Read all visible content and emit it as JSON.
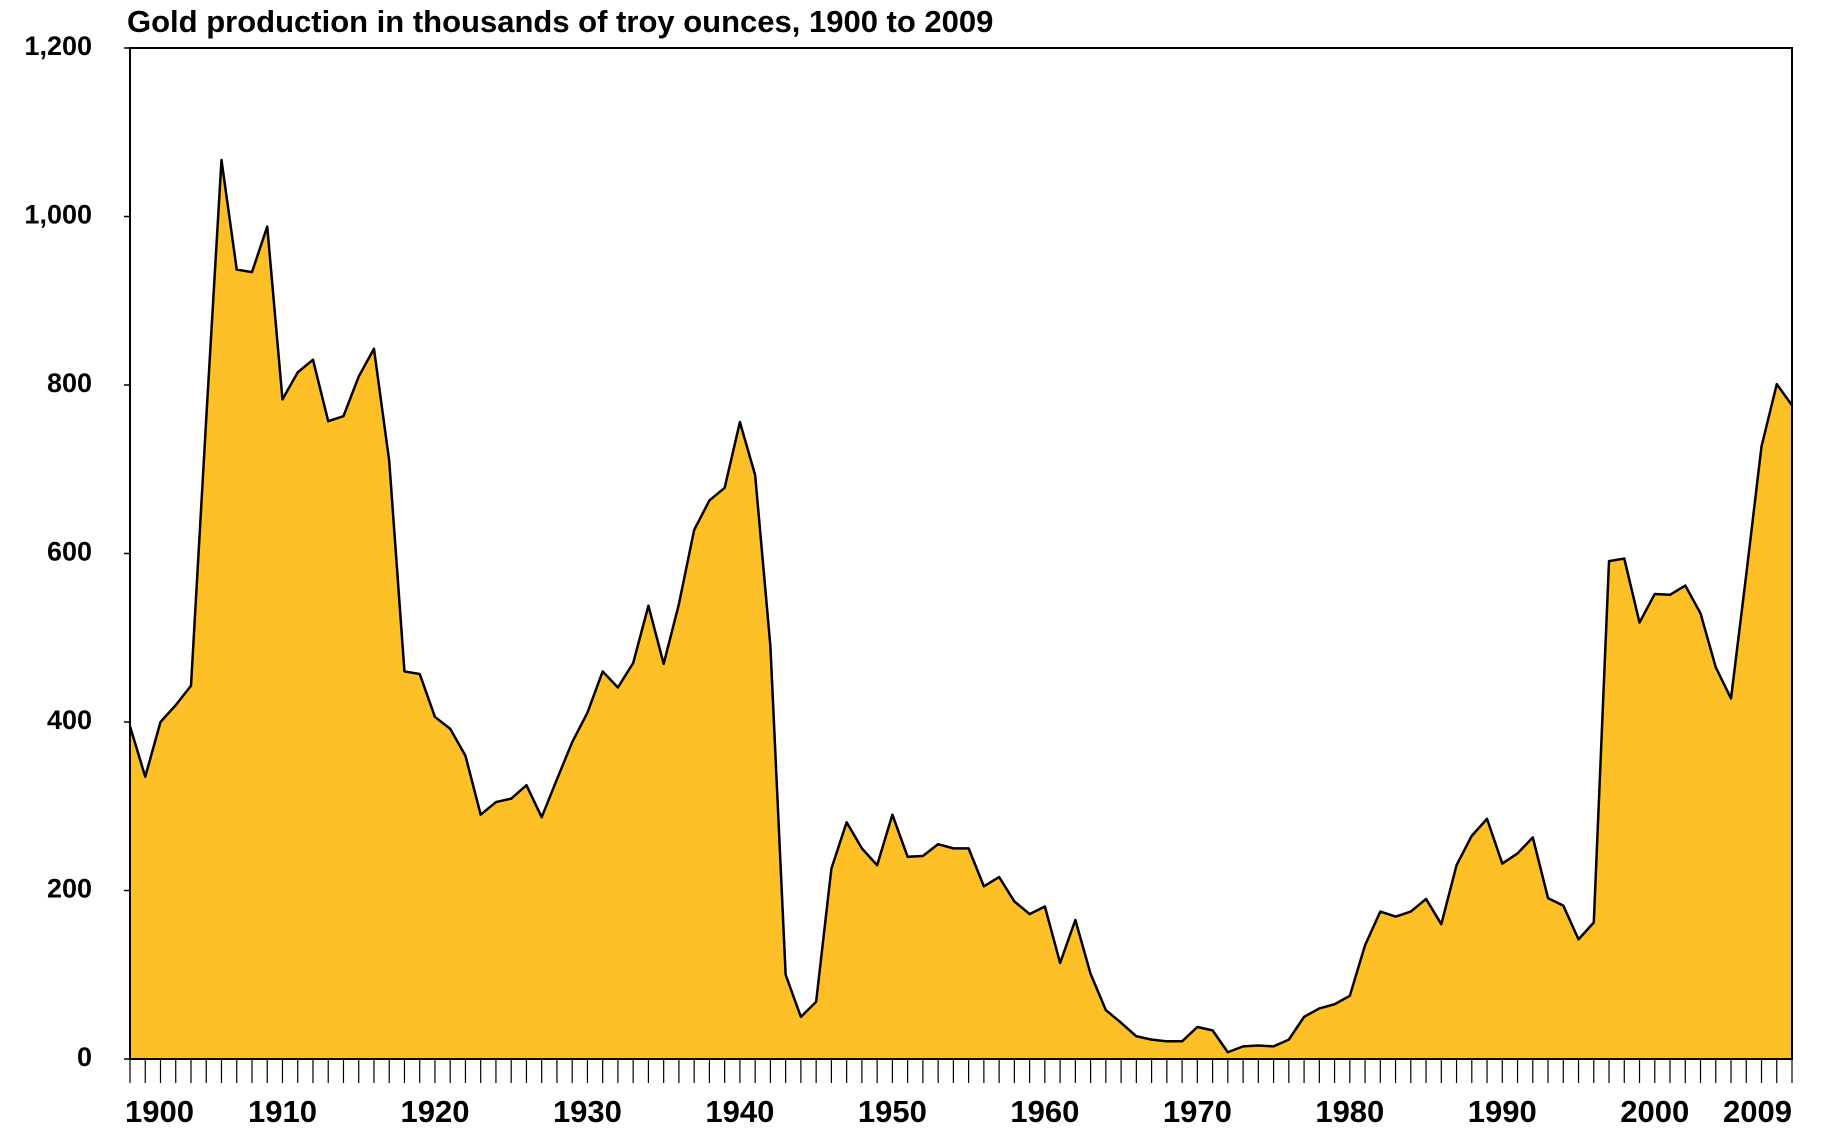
{
  "chart_data": {
    "type": "area",
    "title": "Gold production in thousands of troy ounces, 1900 to 2009",
    "color": "#fdc127",
    "x": [
      1900,
      1901,
      1902,
      1903,
      1904,
      1905,
      1906,
      1907,
      1908,
      1909,
      1910,
      1911,
      1912,
      1913,
      1914,
      1915,
      1916,
      1917,
      1918,
      1919,
      1920,
      1921,
      1922,
      1923,
      1924,
      1925,
      1926,
      1927,
      1928,
      1929,
      1930,
      1931,
      1932,
      1933,
      1934,
      1935,
      1936,
      1937,
      1938,
      1939,
      1940,
      1941,
      1942,
      1943,
      1944,
      1945,
      1946,
      1947,
      1948,
      1949,
      1950,
      1951,
      1952,
      1953,
      1954,
      1955,
      1956,
      1957,
      1958,
      1959,
      1960,
      1961,
      1962,
      1963,
      1964,
      1965,
      1966,
      1967,
      1968,
      1969,
      1970,
      1971,
      1972,
      1973,
      1974,
      1975,
      1976,
      1977,
      1978,
      1979,
      1980,
      1981,
      1982,
      1983,
      1984,
      1985,
      1986,
      1987,
      1988,
      1989,
      1990,
      1991,
      1992,
      1993,
      1994,
      1995,
      1996,
      1997,
      1998,
      1999,
      2000,
      2001,
      2002,
      2003,
      2004,
      2005,
      2006,
      2007,
      2008,
      2009
    ],
    "values": [
      395,
      335,
      400,
      420,
      443,
      760,
      1067,
      937,
      934,
      988,
      783,
      815,
      830,
      757,
      763,
      810,
      843,
      710,
      460,
      457,
      406,
      392,
      360,
      290,
      305,
      309,
      325,
      287,
      332,
      376,
      411,
      460,
      441,
      470,
      538,
      469,
      540,
      628,
      663,
      678,
      756,
      693,
      490,
      100,
      50,
      68,
      226,
      281,
      250,
      230,
      290,
      240,
      241,
      255,
      250,
      250,
      205,
      216,
      187,
      172,
      181,
      114,
      165,
      101,
      58,
      43,
      27,
      23,
      21,
      21,
      38,
      34,
      8,
      15,
      16,
      15,
      23,
      50,
      60,
      65,
      75,
      135,
      175,
      169,
      175,
      190,
      160,
      230,
      265,
      285,
      232,
      244,
      263,
      191,
      182,
      142,
      162,
      591,
      594,
      518,
      552,
      551,
      562,
      529,
      465,
      428,
      575,
      727,
      801,
      776
    ],
    "xlim": [
      1900,
      2009
    ],
    "xticks": [
      1900,
      1910,
      1920,
      1930,
      1940,
      1950,
      1960,
      1970,
      1980,
      1990,
      2000,
      2009
    ],
    "ylim": [
      0,
      1200
    ],
    "yticks": [
      0,
      200,
      400,
      600,
      {
        "value": 800,
        "label": "800"
      },
      {
        "value": 1000,
        "label": "1,000"
      },
      {
        "value": 1200,
        "label": "1,200"
      }
    ]
  }
}
